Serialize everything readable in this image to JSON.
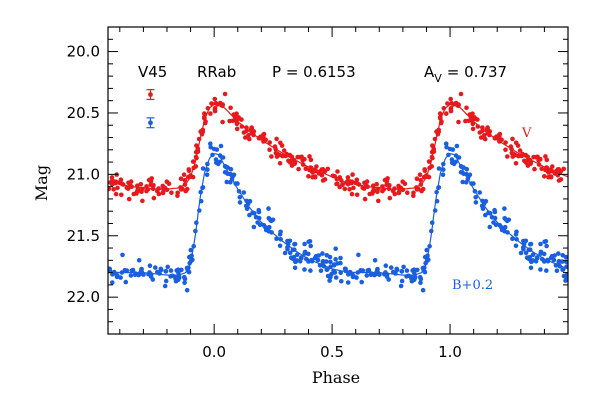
{
  "chart_data": {
    "type": "scatter",
    "title": "",
    "xlabel": "Phase",
    "ylabel": "Mag",
    "xlim": [
      -0.45,
      1.5
    ],
    "ylim": [
      22.3,
      19.8
    ],
    "y_inverted": true,
    "x_ticks": [
      0.0,
      0.5,
      1.0
    ],
    "x_tick_labels": [
      "0.0",
      "0.5",
      "1.0"
    ],
    "y_ticks": [
      20.0,
      20.5,
      21.0,
      21.5,
      22.0
    ],
    "y_tick_labels": [
      "20.0",
      "20.5",
      "21.0",
      "21.5",
      "22.0"
    ],
    "grid": false,
    "header": {
      "star": "V45",
      "type": "RRab",
      "period_label": "P = 0.6153",
      "amp_symbol": "A",
      "amp_subscript": "V",
      "amp_value": "= 0.737"
    },
    "error_bars": [
      {
        "series": "V",
        "x": -0.27,
        "y": 20.35,
        "err": 0.04
      },
      {
        "series": "B",
        "x": -0.27,
        "y": 20.58,
        "err": 0.04
      }
    ],
    "series": [
      {
        "name": "V",
        "label": "V",
        "color": "#e8191c",
        "curve": {
          "phase": [
            0.0,
            0.02,
            0.05,
            0.1,
            0.15,
            0.2,
            0.25,
            0.3,
            0.35,
            0.4,
            0.45,
            0.5,
            0.55,
            0.6,
            0.65,
            0.7,
            0.75,
            0.8,
            0.85,
            0.88,
            0.9,
            0.92,
            0.94,
            0.96,
            0.98,
            1.0
          ],
          "mag": [
            20.43,
            20.42,
            20.47,
            20.57,
            20.65,
            20.72,
            20.78,
            20.84,
            20.89,
            20.94,
            20.98,
            21.02,
            21.06,
            21.08,
            21.1,
            21.11,
            21.12,
            21.12,
            21.11,
            21.08,
            21.02,
            20.9,
            20.72,
            20.55,
            20.46,
            20.43
          ]
        },
        "scatter_sigma": 0.045
      },
      {
        "name": "B+0.2",
        "label": "B+0.2",
        "color": "#1a5fe0",
        "curve": {
          "phase": [
            0.0,
            0.02,
            0.05,
            0.1,
            0.15,
            0.2,
            0.25,
            0.3,
            0.35,
            0.4,
            0.45,
            0.5,
            0.55,
            0.6,
            0.65,
            0.7,
            0.75,
            0.8,
            0.85,
            0.88,
            0.9,
            0.92,
            0.94,
            0.96,
            0.98,
            1.0
          ],
          "mag": [
            20.83,
            20.84,
            20.95,
            21.12,
            21.27,
            21.39,
            21.48,
            21.56,
            21.63,
            21.69,
            21.73,
            21.77,
            21.79,
            21.8,
            21.8,
            21.8,
            21.81,
            21.82,
            21.82,
            21.8,
            21.73,
            21.5,
            21.2,
            20.98,
            20.87,
            20.83
          ]
        },
        "scatter_sigma": 0.06
      }
    ]
  }
}
